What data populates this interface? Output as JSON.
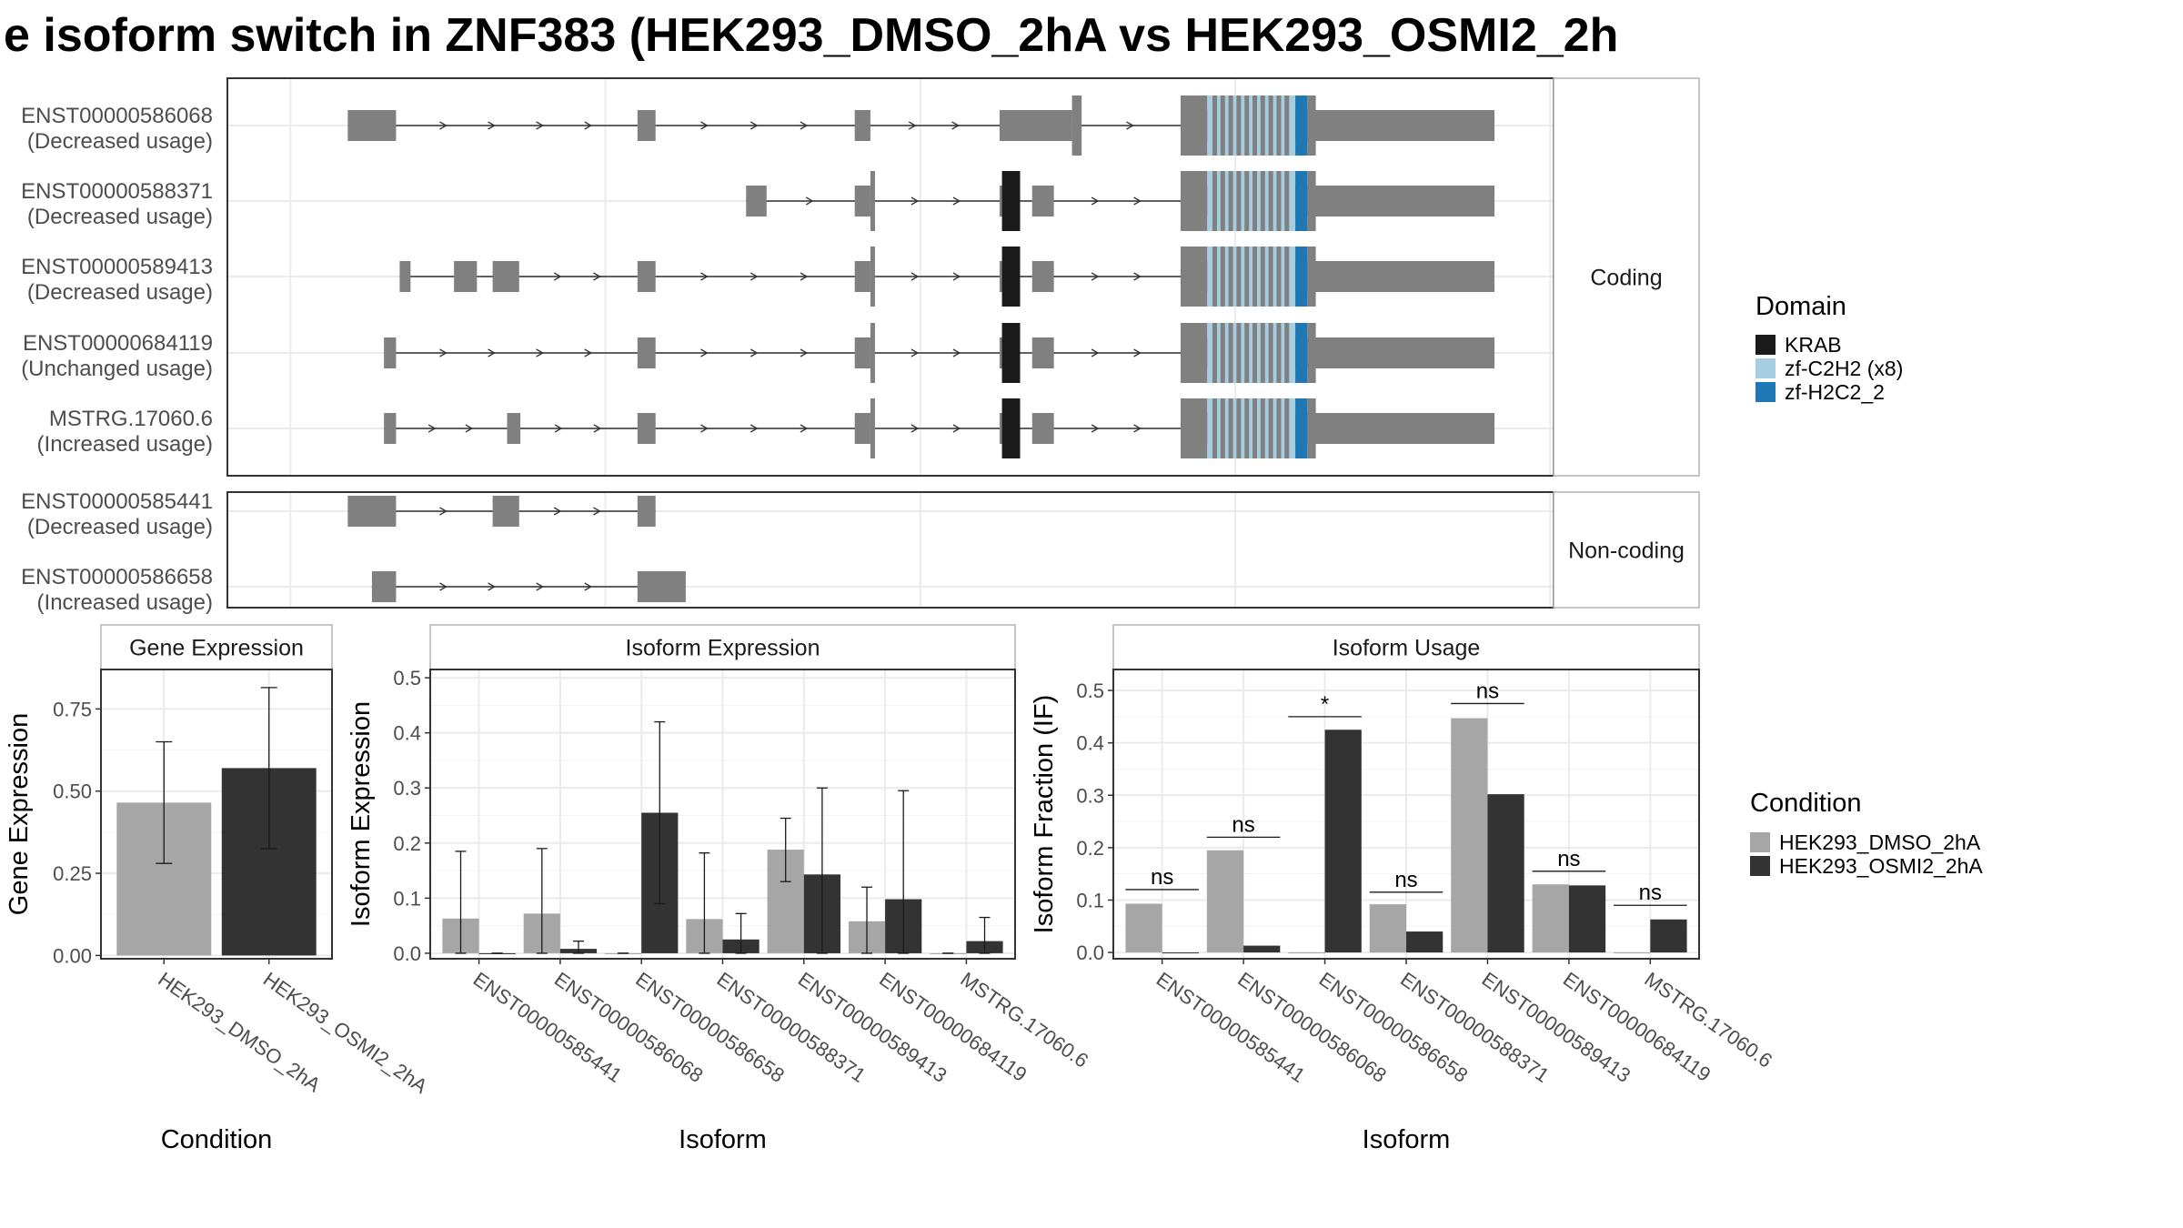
{
  "title": "e isoform switch in ZNF383 (HEK293_DMSO_2hA vs HEK293_OSMI2_2h",
  "colors": {
    "exon": "#808080",
    "krab": "#1a1a1a",
    "zf_c2h2": "#a6cee3",
    "zf_h2c2": "#1f78b4",
    "cond1": "#a6a6a6",
    "cond2": "#333333",
    "grid": "#ebebeb",
    "panel_border": "#333333",
    "strip_border": "#b3b3b3"
  },
  "legends": {
    "domain": {
      "title": "Domain",
      "items": [
        {
          "label": "KRAB",
          "color": "#1a1a1a"
        },
        {
          "label": "zf-C2H2 (x8)",
          "color": "#a6cee3"
        },
        {
          "label": "zf-H2C2_2",
          "color": "#1f78b4"
        }
      ]
    },
    "condition": {
      "title": "Condition",
      "items": [
        {
          "label": "HEK293_DMSO_2hA",
          "color": "#a6a6a6"
        },
        {
          "label": "HEK293_OSMI2_2hA",
          "color": "#333333"
        }
      ]
    }
  },
  "chart_data": [
    {
      "type": "gene_structure",
      "facets": [
        {
          "label": "Coding",
          "transcripts": [
            {
              "name": "ENST00000586068",
              "usage": "(Decreased usage)",
              "span": [
                0.05,
                1.0
              ],
              "exons": [
                [
                  0.05,
                  0.09
                ],
                [
                  0.29,
                  0.305
                ],
                [
                  0.47,
                  0.483
                ],
                [
                  0.59,
                  0.65
                ],
                [
                  0.65,
                  0.658,
                  "tall"
                ],
                [
                  0.74,
                  1.0
                ]
              ],
              "domains": [
                [
                  "zf",
                  0.762,
                  0.835
                ],
                [
                  "h2c2",
                  0.835,
                  0.845
                ]
              ]
            },
            {
              "name": "ENST00000588371",
              "usage": "(Decreased usage)",
              "span": [
                0.38,
                1.0
              ],
              "exons": [
                [
                  0.38,
                  0.397
                ],
                [
                  0.47,
                  0.483
                ],
                [
                  0.483,
                  0.486,
                  "tall"
                ],
                [
                  0.59,
                  0.607
                ],
                [
                  0.617,
                  0.635
                ],
                [
                  0.74,
                  1.0
                ]
              ],
              "domains": [
                [
                  "krab",
                  0.592,
                  0.607
                ],
                [
                  "zf",
                  0.762,
                  0.835
                ],
                [
                  "h2c2",
                  0.835,
                  0.845
                ]
              ]
            },
            {
              "name": "ENST00000589413",
              "usage": "(Decreased usage)",
              "span": [
                0.093,
                1.0
              ],
              "exons": [
                [
                  0.093,
                  0.102
                ],
                [
                  0.138,
                  0.157
                ],
                [
                  0.17,
                  0.192
                ],
                [
                  0.29,
                  0.305
                ],
                [
                  0.47,
                  0.483
                ],
                [
                  0.483,
                  0.486,
                  "tall"
                ],
                [
                  0.59,
                  0.607
                ],
                [
                  0.617,
                  0.635
                ],
                [
                  0.74,
                  1.0
                ]
              ],
              "domains": [
                [
                  "krab",
                  0.592,
                  0.607
                ],
                [
                  "zf",
                  0.762,
                  0.835
                ],
                [
                  "h2c2",
                  0.835,
                  0.845
                ]
              ]
            },
            {
              "name": "ENST00000684119",
              "usage": "(Unchanged usage)",
              "span": [
                0.08,
                1.0
              ],
              "exons": [
                [
                  0.08,
                  0.09
                ],
                [
                  0.29,
                  0.305
                ],
                [
                  0.47,
                  0.483
                ],
                [
                  0.483,
                  0.486,
                  "tall"
                ],
                [
                  0.59,
                  0.607
                ],
                [
                  0.617,
                  0.635
                ],
                [
                  0.74,
                  1.0
                ]
              ],
              "domains": [
                [
                  "krab",
                  0.592,
                  0.607
                ],
                [
                  "zf",
                  0.762,
                  0.835
                ],
                [
                  "h2c2",
                  0.835,
                  0.845
                ]
              ]
            },
            {
              "name": "MSTRG.17060.6",
              "usage": "(Increased usage)",
              "span": [
                0.08,
                1.0
              ],
              "exons": [
                [
                  0.08,
                  0.09
                ],
                [
                  0.182,
                  0.193
                ],
                [
                  0.29,
                  0.305
                ],
                [
                  0.47,
                  0.483
                ],
                [
                  0.483,
                  0.486,
                  "tall"
                ],
                [
                  0.59,
                  0.607
                ],
                [
                  0.617,
                  0.635
                ],
                [
                  0.74,
                  1.0
                ]
              ],
              "domains": [
                [
                  "krab",
                  0.592,
                  0.607
                ],
                [
                  "zf",
                  0.762,
                  0.835
                ],
                [
                  "h2c2",
                  0.835,
                  0.845
                ]
              ]
            }
          ]
        },
        {
          "label": "Non-coding",
          "transcripts": [
            {
              "name": "ENST00000585441",
              "usage": "(Decreased usage)",
              "span": [
                0.05,
                0.305
              ],
              "exons": [
                [
                  0.05,
                  0.09
                ],
                [
                  0.17,
                  0.192
                ],
                [
                  0.29,
                  0.305
                ]
              ],
              "domains": []
            },
            {
              "name": "ENST00000586658",
              "usage": "(Increased usage)",
              "span": [
                0.07,
                0.33
              ],
              "exons": [
                [
                  0.07,
                  0.09
                ],
                [
                  0.29,
                  0.33
                ]
              ],
              "domains": []
            }
          ]
        }
      ]
    },
    {
      "type": "bar",
      "strip": "Gene Expression",
      "xlabel": "Condition",
      "ylabel": "Gene Expression",
      "ylim": [
        -0.01,
        0.87
      ],
      "yticks": [
        "0.00",
        "0.25",
        "0.50",
        "0.75"
      ],
      "ytick_values": [
        0,
        0.25,
        0.5,
        0.75
      ],
      "categories": [
        "HEK293_DMSO_2hA",
        "HEK293_OSMI2_2hA"
      ],
      "values": [
        0.465,
        0.57
      ],
      "error": [
        [
          0.28,
          0.65
        ],
        [
          0.325,
          0.815
        ]
      ]
    },
    {
      "type": "bar",
      "strip": "Isoform Expression",
      "xlabel": "Isoform",
      "ylabel": "Isoform Expression",
      "ylim": [
        -0.01,
        0.515
      ],
      "yticks": [
        "0.0",
        "0.1",
        "0.2",
        "0.3",
        "0.4",
        "0.5"
      ],
      "ytick_values": [
        0,
        0.1,
        0.2,
        0.3,
        0.4,
        0.5
      ],
      "categories": [
        "ENST00000585441",
        "ENST00000586068",
        "ENST00000586658",
        "ENST00000588371",
        "ENST00000589413",
        "ENST00000684119",
        "MSTRG.17060.6"
      ],
      "series": [
        {
          "name": "HEK293_DMSO_2hA",
          "values": [
            0.063,
            0.072,
            0.0,
            0.062,
            0.188,
            0.058,
            0.0
          ],
          "error": [
            [
              0.0,
              0.185
            ],
            [
              0.0,
              0.19
            ],
            [
              0.0,
              0.0
            ],
            [
              0.0,
              0.182
            ],
            [
              0.13,
              0.245
            ],
            [
              0.0,
              0.12
            ],
            [
              0.0,
              0.0
            ]
          ]
        },
        {
          "name": "HEK293_OSMI2_2hA",
          "values": [
            0.0,
            0.008,
            0.255,
            0.025,
            0.143,
            0.098,
            0.022
          ],
          "error": [
            [
              0.0,
              0.0
            ],
            [
              0.0,
              0.022
            ],
            [
              0.09,
              0.42
            ],
            [
              0.0,
              0.072
            ],
            [
              0.0,
              0.3
            ],
            [
              0.0,
              0.295
            ],
            [
              0.0,
              0.065
            ]
          ]
        }
      ]
    },
    {
      "type": "bar",
      "strip": "Isoform Usage",
      "xlabel": "Isoform",
      "ylabel": "Isoform Fraction (IF)",
      "ylim": [
        -0.012,
        0.54
      ],
      "yticks": [
        "0.0",
        "0.1",
        "0.2",
        "0.3",
        "0.4",
        "0.5"
      ],
      "ytick_values": [
        0,
        0.1,
        0.2,
        0.3,
        0.4,
        0.5
      ],
      "categories": [
        "ENST00000585441",
        "ENST00000586068",
        "ENST00000586658",
        "ENST00000588371",
        "ENST00000589413",
        "ENST00000684119",
        "MSTRG.17060.6"
      ],
      "series": [
        {
          "name": "HEK293_DMSO_2hA",
          "values": [
            0.093,
            0.195,
            0.0,
            0.092,
            0.447,
            0.13,
            0.0
          ]
        },
        {
          "name": "HEK293_OSMI2_2hA",
          "values": [
            0.0,
            0.013,
            0.425,
            0.04,
            0.302,
            0.128,
            0.063
          ]
        }
      ],
      "significance": [
        {
          "label": "ns",
          "y": 0.12
        },
        {
          "label": "ns",
          "y": 0.22
        },
        {
          "label": "*",
          "y": 0.45
        },
        {
          "label": "ns",
          "y": 0.115
        },
        {
          "label": "ns",
          "y": 0.475
        },
        {
          "label": "ns",
          "y": 0.155
        },
        {
          "label": "ns",
          "y": 0.09
        }
      ]
    }
  ]
}
